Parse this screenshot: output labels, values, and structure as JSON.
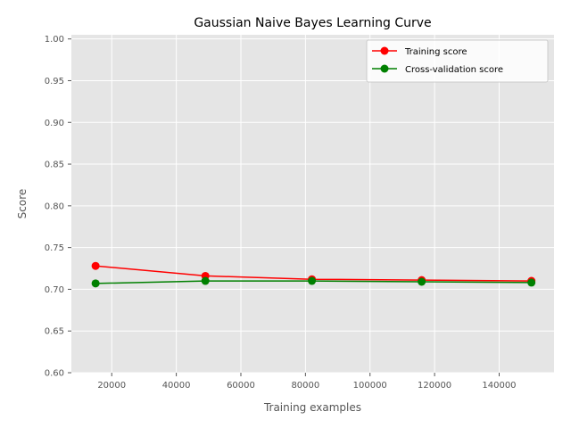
{
  "chart_data": {
    "type": "line",
    "title": "Gaussian Naive Bayes Learning Curve",
    "xlabel": "Training examples",
    "ylabel": "Score",
    "xlim": [
      7500,
      157000
    ],
    "ylim": [
      0.6,
      1.005
    ],
    "xticks": [
      20000,
      40000,
      60000,
      80000,
      100000,
      120000,
      140000
    ],
    "yticks": [
      0.6,
      0.65,
      0.7,
      0.75,
      0.8,
      0.85,
      0.9,
      0.95,
      1.0
    ],
    "xtick_labels": [
      "20000",
      "40000",
      "60000",
      "80000",
      "100000",
      "120000",
      "140000"
    ],
    "ytick_labels": [
      "0.60",
      "0.65",
      "0.70",
      "0.75",
      "0.80",
      "0.85",
      "0.90",
      "0.95",
      "1.00"
    ],
    "grid": true,
    "legend_position": "top-right",
    "series": [
      {
        "name": "Training score",
        "color": "#ff0000",
        "x": [
          15000,
          49000,
          82000,
          116000,
          150000
        ],
        "y": [
          0.728,
          0.716,
          0.712,
          0.711,
          0.71
        ]
      },
      {
        "name": "Cross-validation score",
        "color": "#008000",
        "x": [
          15000,
          49000,
          82000,
          116000,
          150000
        ],
        "y": [
          0.707,
          0.71,
          0.71,
          0.709,
          0.708
        ]
      }
    ]
  }
}
